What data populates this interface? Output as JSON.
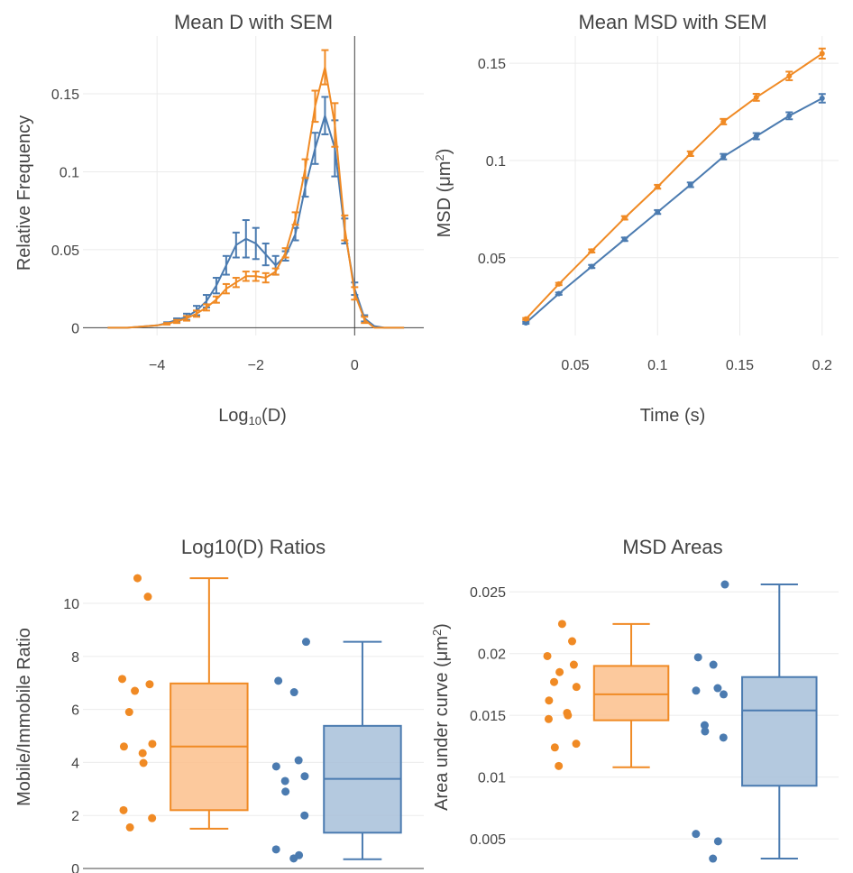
{
  "chart_data": [
    {
      "type": "line",
      "title": "Mean D with SEM",
      "xlabel_main": "Log",
      "xlabel_sub": "10",
      "xlabel_tail": "(D)",
      "ylabel": "Relative Frequency",
      "xlim": [
        -5.5,
        1.4
      ],
      "ylim": [
        -0.005,
        0.187
      ],
      "xticks": [
        -4,
        -2,
        0
      ],
      "xtick_labels": [
        "−4",
        "−2",
        "0"
      ],
      "yticks": [
        0,
        0.05,
        0.1,
        0.15
      ],
      "ytick_labels": [
        "0",
        "0.05",
        "0.1",
        "0.15"
      ],
      "x": [
        -5.0,
        -4.8,
        -4.6,
        -4.4,
        -4.2,
        -4.0,
        -3.8,
        -3.6,
        -3.4,
        -3.2,
        -3.0,
        -2.8,
        -2.6,
        -2.4,
        -2.2,
        -2.0,
        -1.8,
        -1.6,
        -1.4,
        -1.2,
        -1.0,
        -0.8,
        -0.6,
        -0.4,
        -0.2,
        0.0,
        0.2,
        0.4,
        0.6,
        0.8,
        1.0
      ],
      "series": [
        {
          "color": "#4b7bb0",
          "y": [
            0.0,
            0.0,
            0.0,
            0.0005,
            0.001,
            0.0015,
            0.003,
            0.005,
            0.007,
            0.011,
            0.017,
            0.027,
            0.04,
            0.053,
            0.057,
            0.054,
            0.047,
            0.04,
            0.046,
            0.06,
            0.09,
            0.115,
            0.136,
            0.115,
            0.062,
            0.025,
            0.006,
            0.001,
            0.0,
            0.0,
            0.0
          ],
          "err": [
            0,
            0,
            0,
            0,
            0,
            0,
            0.0005,
            0.001,
            0.002,
            0.003,
            0.004,
            0.005,
            0.006,
            0.008,
            0.012,
            0.01,
            0.007,
            0.006,
            0.003,
            0.004,
            0.006,
            0.01,
            0.012,
            0.018,
            0.008,
            0.004,
            0.002,
            0,
            0,
            0,
            0
          ]
        },
        {
          "color": "#f08a24",
          "y": [
            0.0,
            0.0,
            0.0,
            0.0005,
            0.001,
            0.0015,
            0.0025,
            0.004,
            0.006,
            0.009,
            0.013,
            0.018,
            0.025,
            0.029,
            0.033,
            0.033,
            0.032,
            0.036,
            0.048,
            0.07,
            0.102,
            0.142,
            0.167,
            0.13,
            0.064,
            0.022,
            0.005,
            0.0,
            0.0,
            0.0,
            0.0
          ],
          "err": [
            0,
            0,
            0,
            0,
            0,
            0,
            0.0005,
            0.001,
            0.0015,
            0.002,
            0.002,
            0.002,
            0.003,
            0.003,
            0.003,
            0.003,
            0.003,
            0.002,
            0.003,
            0.004,
            0.006,
            0.01,
            0.011,
            0.014,
            0.008,
            0.004,
            0.002,
            0,
            0,
            0,
            0
          ]
        }
      ]
    },
    {
      "type": "line",
      "title": "Mean MSD with SEM",
      "xlabel": "Time (s)",
      "ylabel_main": "MSD (μm",
      "ylabel_sup": "2",
      "ylabel_tail": ")",
      "xlim": [
        0.01,
        0.21
      ],
      "ylim": [
        0.01,
        0.164
      ],
      "xticks": [
        0.05,
        0.1,
        0.15,
        0.2
      ],
      "xtick_labels": [
        "0.05",
        "0.1",
        "0.15",
        "0.2"
      ],
      "yticks": [
        0.05,
        0.1,
        0.15
      ],
      "ytick_labels": [
        "0.05",
        "0.1",
        "0.15"
      ],
      "x": [
        0.02,
        0.04,
        0.06,
        0.08,
        0.1,
        0.12,
        0.14,
        0.16,
        0.18,
        0.2
      ],
      "series": [
        {
          "color": "#4b7bb0",
          "y": [
            0.0165,
            0.0315,
            0.0455,
            0.0595,
            0.0735,
            0.0875,
            0.102,
            0.1125,
            0.123,
            0.132
          ],
          "err": [
            0.0005,
            0.0006,
            0.0008,
            0.0009,
            0.001,
            0.0012,
            0.0014,
            0.0016,
            0.0018,
            0.0022
          ]
        },
        {
          "color": "#f08a24",
          "y": [
            0.0185,
            0.0365,
            0.0535,
            0.0705,
            0.0865,
            0.1035,
            0.12,
            0.1325,
            0.1435,
            0.155
          ],
          "err": [
            0.0005,
            0.0006,
            0.0008,
            0.0009,
            0.001,
            0.0012,
            0.0014,
            0.0018,
            0.0022,
            0.0026
          ]
        }
      ]
    },
    {
      "type": "box",
      "title": "Log10(D) Ratios",
      "ylabel": "Mobile/Immobile Ratio",
      "ylim": [
        0,
        11.6
      ],
      "yticks": [
        0,
        2,
        4,
        6,
        8,
        10
      ],
      "ytick_labels": [
        "0",
        "2",
        "4",
        "6",
        "8",
        "10"
      ],
      "groups": [
        {
          "color": "#f08a24",
          "fill": "#fbc08c",
          "points": [
            10.95,
            10.25,
            7.15,
            6.95,
            6.7,
            5.9,
            4.7,
            4.6,
            4.35,
            3.98,
            2.2,
            1.9,
            1.55
          ],
          "box": {
            "min": 1.5,
            "q1": 2.2,
            "median": 4.6,
            "q3": 6.98,
            "max": 10.95
          }
        },
        {
          "color": "#4b7bb0",
          "fill": "#a7bfd9",
          "points": [
            8.55,
            7.08,
            6.65,
            4.08,
            3.85,
            3.48,
            3.3,
            2.9,
            2.0,
            0.72,
            0.5,
            0.38
          ],
          "box": {
            "min": 0.35,
            "q1": 1.35,
            "median": 3.38,
            "q3": 5.38,
            "max": 8.55
          }
        }
      ]
    },
    {
      "type": "box",
      "title": "MSD Areas",
      "ylabel_main": "Area under curve (μm",
      "ylabel_sup": "2",
      "ylabel_tail": ")",
      "ylim": [
        0.0026,
        0.0275
      ],
      "yticks": [
        0.005,
        0.01,
        0.015,
        0.02,
        0.025
      ],
      "ytick_labels": [
        "0.005",
        "0.01",
        "0.015",
        "0.02",
        "0.025"
      ],
      "groups": [
        {
          "color": "#f08a24",
          "fill": "#fbc08c",
          "points": [
            0.0224,
            0.021,
            0.0198,
            0.0191,
            0.0185,
            0.0177,
            0.0173,
            0.0162,
            0.0152,
            0.015,
            0.0147,
            0.0127,
            0.0124,
            0.0109
          ],
          "box": {
            "min": 0.0108,
            "q1": 0.0146,
            "median": 0.0167,
            "q3": 0.019,
            "max": 0.0224
          }
        },
        {
          "color": "#4b7bb0",
          "fill": "#a7bfd9",
          "points": [
            0.0256,
            0.0197,
            0.0191,
            0.0172,
            0.017,
            0.0167,
            0.0142,
            0.0137,
            0.0132,
            0.0054,
            0.0048,
            0.0034
          ],
          "box": {
            "min": 0.0034,
            "q1": 0.0093,
            "median": 0.0154,
            "q3": 0.0181,
            "max": 0.0256
          }
        }
      ]
    }
  ]
}
